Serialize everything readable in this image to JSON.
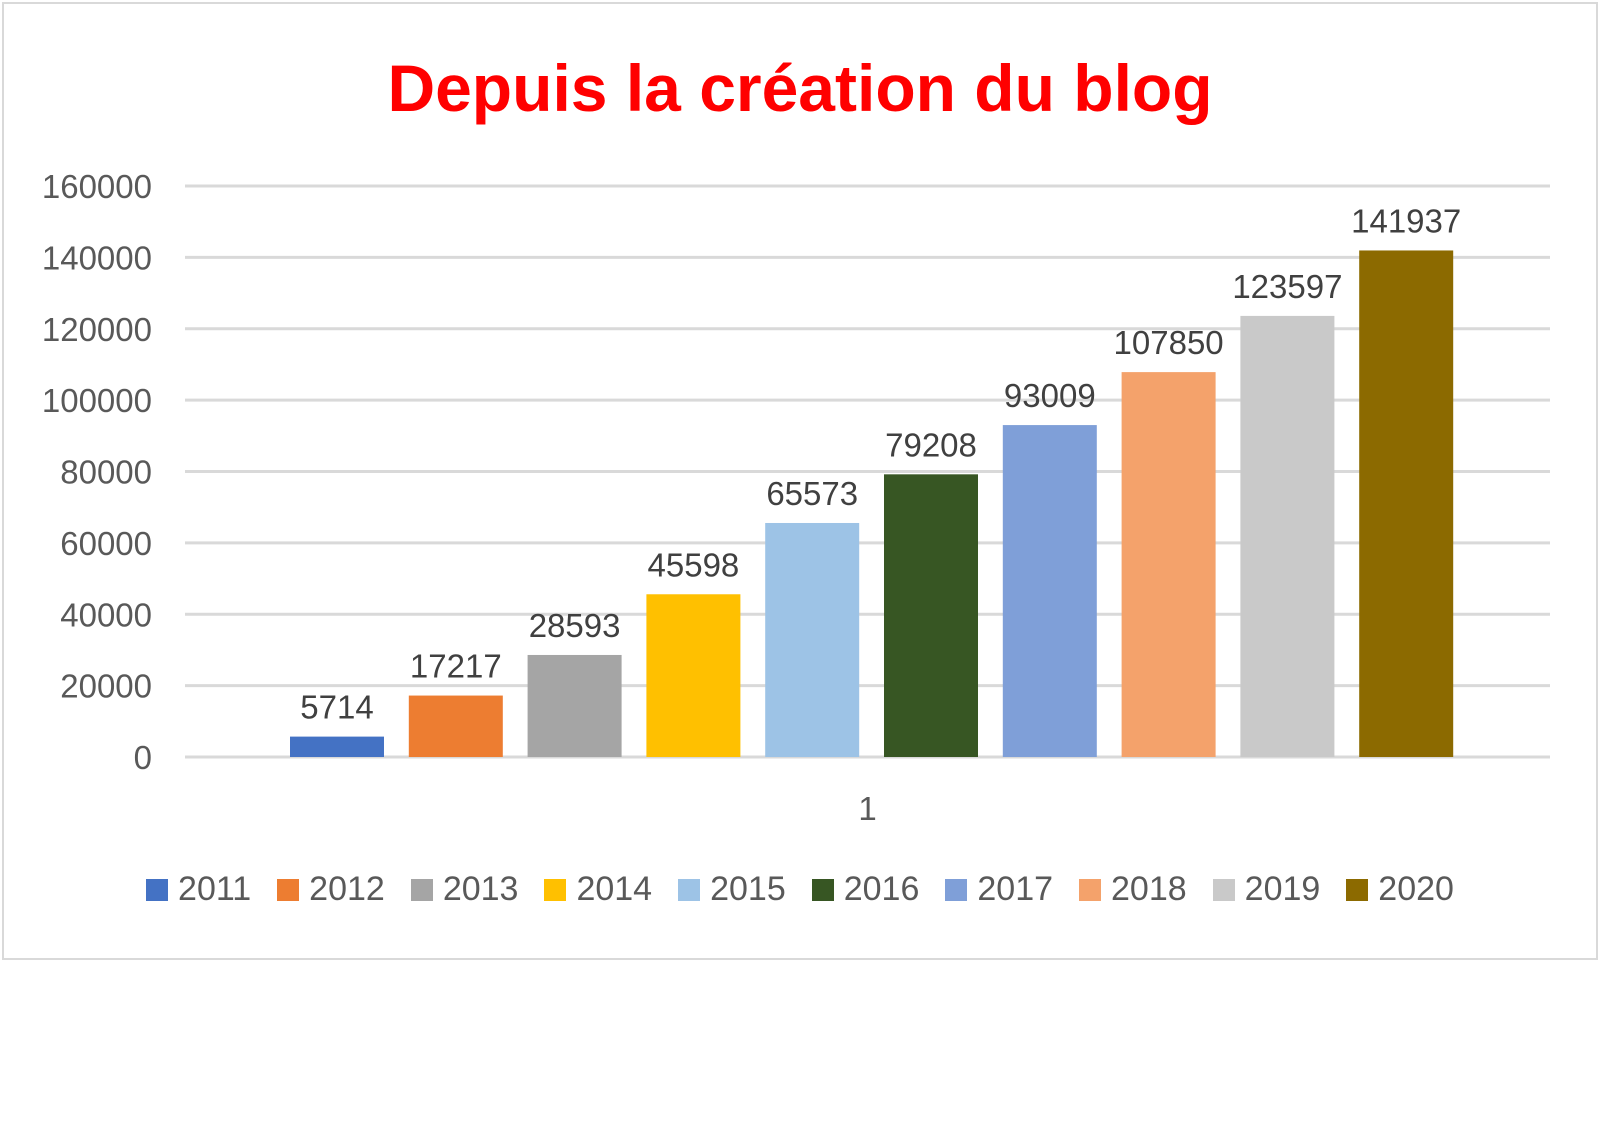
{
  "chart_data": {
    "type": "bar",
    "title": "Depuis la création du blog",
    "categories": [
      "1"
    ],
    "xlabel": "",
    "ylabel": "",
    "ylim": [
      0,
      160000
    ],
    "yticks": [
      "0",
      "20000",
      "40000",
      "60000",
      "80000",
      "100000",
      "120000",
      "140000",
      "160000"
    ],
    "grid": true,
    "legend_position": "bottom",
    "series": [
      {
        "name": "2011",
        "values": [
          5714
        ],
        "color": "#4472c4"
      },
      {
        "name": "2012",
        "values": [
          17217
        ],
        "color": "#ed7d31"
      },
      {
        "name": "2013",
        "values": [
          28593
        ],
        "color": "#a5a5a5"
      },
      {
        "name": "2014",
        "values": [
          45598
        ],
        "color": "#ffc000"
      },
      {
        "name": "2015",
        "values": [
          65573
        ],
        "color": "#9dc3e6"
      },
      {
        "name": "2016",
        "values": [
          79208
        ],
        "color": "#375623"
      },
      {
        "name": "2017",
        "values": [
          93009
        ],
        "color": "#7f9fd8"
      },
      {
        "name": "2018",
        "values": [
          107850
        ],
        "color": "#f4a26b"
      },
      {
        "name": "2019",
        "values": [
          123597
        ],
        "color": "#c9c9c9"
      },
      {
        "name": "2020",
        "values": [
          141937
        ],
        "color": "#8c6a00"
      }
    ],
    "data_labels": [
      "5714",
      "17217",
      "28593",
      "45598",
      "65573",
      "79208",
      "93009",
      "107850",
      "123597",
      "141937"
    ]
  },
  "colors": {
    "title": "#ff0000",
    "grid": "#d9d9d9",
    "text": "#595959"
  }
}
